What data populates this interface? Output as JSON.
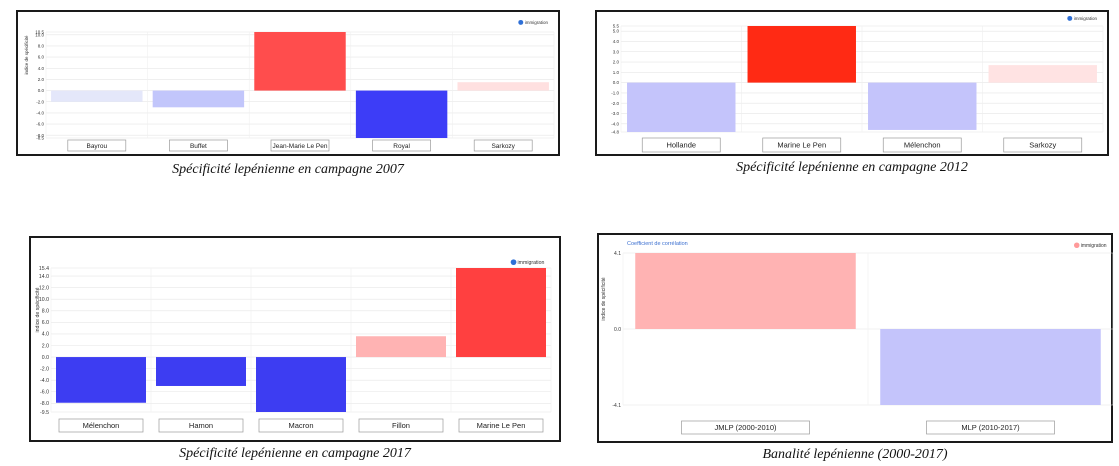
{
  "chart_data": [
    {
      "type": "bar",
      "caption": "Spécificité lepénienne en campagne 2007",
      "ylabel": "indice de spécificité",
      "legend": "immigration",
      "legend_color": "#2e6fd6",
      "categories": [
        "Bayrou",
        "Buffet",
        "Jean-Marie Le Pen",
        "Royal",
        "Sarkozy"
      ],
      "values": [
        -2.0,
        -3.0,
        10.5,
        -8.5,
        1.5
      ],
      "colors": [
        "#e4e7fa",
        "#c2c6fb",
        "#ff4d4d",
        "#3d3df7",
        "#ffe0e0"
      ],
      "ylim": [
        -8.5,
        10.5
      ],
      "yticks": [
        "10.5",
        "10.0",
        "8.0",
        "6.0",
        "4.0",
        "2.0",
        "0.0",
        "-2.0",
        "-4.0",
        "-6.0",
        "-8.0",
        "-8.5"
      ],
      "grid": true,
      "legend_position": "top-right"
    },
    {
      "type": "bar",
      "caption": "Spécificité lepénienne en campagne 2012",
      "ylabel": "",
      "legend": "immigration",
      "legend_color": "#2e6fd6",
      "categories": [
        "Hollande",
        "Marine Le Pen",
        "Mélenchon",
        "Sarkozy"
      ],
      "values": [
        -4.8,
        5.5,
        -4.6,
        1.7
      ],
      "colors": [
        "#c4c4fb",
        "#ff2a14",
        "#c4c4fb",
        "#ffe3e3"
      ],
      "ylim": [
        -4.8,
        5.5
      ],
      "yticks": [
        "5.5",
        "5.0",
        "4.0",
        "3.0",
        "2.0",
        "1.0",
        "0.0",
        "-1.0",
        "-2.0",
        "-3.0",
        "-4.0",
        "-4.8"
      ],
      "grid": true,
      "legend_position": "top-right"
    },
    {
      "type": "bar",
      "caption": "Spécificité lepénienne en campagne 2017",
      "ylabel": "indice de spécificité",
      "legend": "immigration",
      "legend_color": "#2e6fd6",
      "categories": [
        "Mélenchon",
        "Hamon",
        "Macron",
        "Fillon",
        "Marine Le Pen"
      ],
      "values": [
        -7.9,
        -5.0,
        -9.5,
        3.6,
        15.4
      ],
      "colors": [
        "#3d3df2",
        "#3d3df2",
        "#3d3df2",
        "#ffb3b3",
        "#ff4040"
      ],
      "ylim": [
        -9.5,
        15.4
      ],
      "yticks": [
        "15.4",
        "14.0",
        "12.0",
        "10.0",
        "8.0",
        "6.0",
        "4.0",
        "2.0",
        "0.0",
        "-2.0",
        "-4.0",
        "-6.0",
        "-8.0",
        "-9.5"
      ],
      "grid": true,
      "legend_position": "top-right"
    },
    {
      "type": "bar",
      "caption": "Banalité lepénienne (2000-2017)",
      "title": "Coefficient de corrélation",
      "ylabel": "indice de spécificité",
      "legend": "immigration",
      "legend_color": "#ff9a9a",
      "categories": [
        "JMLP (2000-2010)",
        "MLP (2010-2017)"
      ],
      "values": [
        4.1,
        -4.1
      ],
      "colors": [
        "#ffb3b3",
        "#c4c4fb"
      ],
      "ylim": [
        -4.1,
        4.1
      ],
      "yticks": [
        "4.1",
        "0.0",
        "-4.1"
      ],
      "grid": true,
      "legend_position": "top-right"
    }
  ]
}
